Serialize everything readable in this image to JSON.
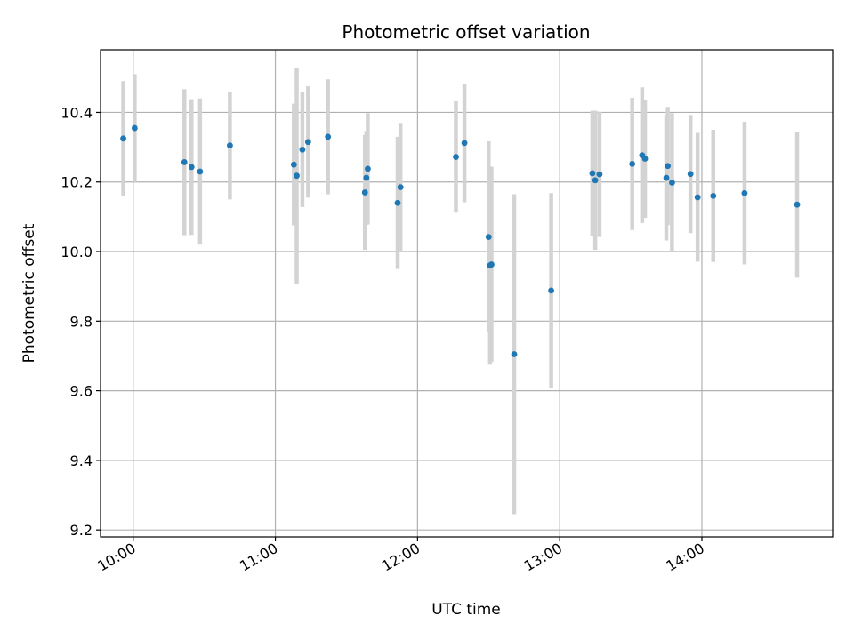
{
  "chart_data": {
    "type": "scatter",
    "title": "Photometric offset variation",
    "xlabel": "UTC time",
    "ylabel": "Photometric offset",
    "grid": true,
    "xlim": [
      9.77,
      14.92
    ],
    "ylim": [
      9.18,
      10.58
    ],
    "x_unit": "hours UTC",
    "xticks": [
      10,
      11,
      12,
      13,
      14
    ],
    "xtick_labels": [
      "10:00",
      "11:00",
      "12:00",
      "13:00",
      "14:00"
    ],
    "yticks": [
      9.2,
      9.4,
      9.6,
      9.8,
      10.0,
      10.2,
      10.4
    ],
    "ytick_labels": [
      "9.2",
      "9.4",
      "9.6",
      "9.8",
      "10.0",
      "10.2",
      "10.4"
    ],
    "colors": {
      "point": "#1f77b4",
      "errorbar": "#d3d3d3",
      "grid": "#b0b0b0"
    },
    "points": [
      {
        "x": 9.93,
        "y": 10.325,
        "err": 0.165
      },
      {
        "x": 10.01,
        "y": 10.355,
        "err": 0.155
      },
      {
        "x": 10.36,
        "y": 10.257,
        "err": 0.21
      },
      {
        "x": 10.41,
        "y": 10.243,
        "err": 0.195
      },
      {
        "x": 10.47,
        "y": 10.23,
        "err": 0.21
      },
      {
        "x": 10.68,
        "y": 10.305,
        "err": 0.155
      },
      {
        "x": 11.13,
        "y": 10.25,
        "err": 0.175
      },
      {
        "x": 11.15,
        "y": 10.218,
        "err": 0.31
      },
      {
        "x": 11.19,
        "y": 10.293,
        "err": 0.165
      },
      {
        "x": 11.23,
        "y": 10.315,
        "err": 0.16
      },
      {
        "x": 11.37,
        "y": 10.33,
        "err": 0.165
      },
      {
        "x": 11.63,
        "y": 10.17,
        "err": 0.165
      },
      {
        "x": 11.64,
        "y": 10.212,
        "err": 0.135
      },
      {
        "x": 11.65,
        "y": 10.238,
        "err": 0.16
      },
      {
        "x": 11.86,
        "y": 10.14,
        "err": 0.19
      },
      {
        "x": 11.88,
        "y": 10.185,
        "err": 0.185
      },
      {
        "x": 12.27,
        "y": 10.272,
        "err": 0.16
      },
      {
        "x": 12.33,
        "y": 10.312,
        "err": 0.17
      },
      {
        "x": 12.5,
        "y": 10.042,
        "err": 0.275
      },
      {
        "x": 12.51,
        "y": 9.96,
        "err": 0.285
      },
      {
        "x": 12.52,
        "y": 9.963,
        "err": 0.28
      },
      {
        "x": 12.68,
        "y": 9.705,
        "err": 0.46
      },
      {
        "x": 12.94,
        "y": 9.888,
        "err": 0.28
      },
      {
        "x": 13.23,
        "y": 10.225,
        "err": 0.18
      },
      {
        "x": 13.25,
        "y": 10.205,
        "err": 0.2
      },
      {
        "x": 13.28,
        "y": 10.222,
        "err": 0.18
      },
      {
        "x": 13.51,
        "y": 10.252,
        "err": 0.19
      },
      {
        "x": 13.58,
        "y": 10.277,
        "err": 0.195
      },
      {
        "x": 13.6,
        "y": 10.267,
        "err": 0.17
      },
      {
        "x": 13.75,
        "y": 10.212,
        "err": 0.18
      },
      {
        "x": 13.76,
        "y": 10.246,
        "err": 0.17
      },
      {
        "x": 13.79,
        "y": 10.198,
        "err": 0.2
      },
      {
        "x": 13.92,
        "y": 10.223,
        "err": 0.17
      },
      {
        "x": 13.97,
        "y": 10.156,
        "err": 0.185
      },
      {
        "x": 14.08,
        "y": 10.16,
        "err": 0.19
      },
      {
        "x": 14.3,
        "y": 10.168,
        "err": 0.205
      },
      {
        "x": 14.67,
        "y": 10.135,
        "err": 0.21
      }
    ]
  }
}
